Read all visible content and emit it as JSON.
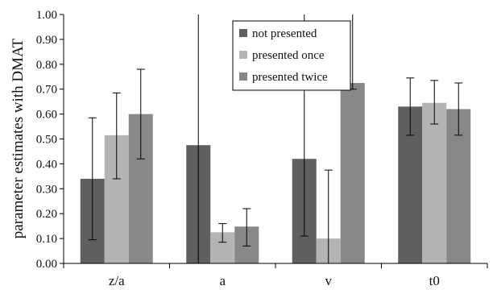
{
  "chart_data": {
    "type": "bar",
    "title": "",
    "xlabel": "",
    "ylabel": "parameter estimates with DMAT",
    "ylim": [
      0,
      1
    ],
    "yticks": [
      "0.00",
      "0.10",
      "0.20",
      "0.30",
      "0.40",
      "0.50",
      "0.60",
      "0.70",
      "0.80",
      "0.90",
      "1.00"
    ],
    "grid": false,
    "legend_position": "top-center",
    "categories": [
      "z/a",
      "a",
      "v",
      "t0"
    ],
    "series": [
      {
        "name": "not presented",
        "color": "#5f5f5f",
        "values": [
          0.34,
          0.475,
          0.42,
          0.63
        ],
        "error_low": [
          0.095,
          0.0,
          0.11,
          0.515
        ],
        "error_high": [
          0.585,
          1.0,
          1.0,
          0.745
        ]
      },
      {
        "name": "presented once",
        "color": "#b4b4b4",
        "values": [
          0.515,
          0.125,
          0.1,
          0.645
        ],
        "error_low": [
          0.34,
          0.085,
          0.0,
          0.56
        ],
        "error_high": [
          0.685,
          0.16,
          0.375,
          0.735
        ]
      },
      {
        "name": "presented twice",
        "color": "#888888",
        "values": [
          0.6,
          0.148,
          0.725,
          0.62
        ],
        "error_low": [
          0.42,
          0.07,
          0.7,
          0.515
        ],
        "error_high": [
          0.78,
          0.22,
          1.0,
          0.725
        ]
      }
    ]
  }
}
